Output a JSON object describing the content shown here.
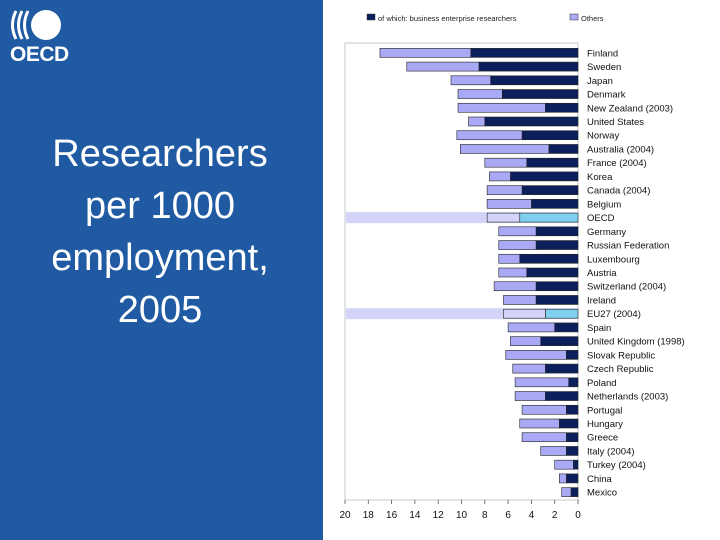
{
  "slide": {
    "logo_text": "OECD",
    "title_lines": [
      "Researchers",
      "per 1000",
      "employment,",
      "2005"
    ]
  },
  "colors": {
    "background": "#1f5aa3",
    "business_series": "#0a1f5c",
    "others_series": "#a9a9f5",
    "highlight_business": "#7fd0ee",
    "highlight_others": "#d4d4fb",
    "panel": "#ffffff"
  },
  "icons": {
    "logo": "oecd-logo-icon"
  },
  "chart_data": {
    "type": "bar",
    "orientation": "horizontal",
    "stacked": true,
    "axis_direction": "reversed",
    "title": "",
    "xlabel": "",
    "ylabel": "",
    "xlim": [
      0,
      20
    ],
    "xticks": [
      20,
      18,
      16,
      14,
      12,
      10,
      8,
      6,
      4,
      2,
      0
    ],
    "legend": [
      "of which: business enterprise researchers",
      "Others"
    ],
    "highlighted": [
      "OECD",
      "EU27 (2004)"
    ],
    "categories": [
      "Finland",
      "Sweden",
      "Japan",
      "Denmark",
      "New Zealand (2003)",
      "United States",
      "Norway",
      "Australia (2004)",
      "France (2004)",
      "Korea",
      "Canada (2004)",
      "Belgium",
      "OECD",
      "Germany",
      "Russian Federation",
      "Luxembourg",
      "Austria",
      "Switzerland (2004)",
      "Ireland",
      "EU27 (2004)",
      "Spain",
      "United Kingdom (1998)",
      "Slovak Republic",
      "Czech Republic",
      "Poland",
      "Netherlands (2003)",
      "Portugal",
      "Hungary",
      "Greece",
      "Italy (2004)",
      "Turkey (2004)",
      "China",
      "Mexico"
    ],
    "series": [
      {
        "name": "of which: business enterprise researchers",
        "values": [
          9.2,
          8.5,
          7.5,
          6.5,
          2.8,
          8.0,
          4.8,
          2.5,
          4.4,
          5.8,
          4.8,
          4.0,
          5.0,
          3.6,
          3.6,
          5.0,
          4.4,
          3.6,
          3.6,
          2.8,
          2.0,
          3.2,
          1.0,
          2.8,
          0.8,
          2.8,
          1.0,
          1.6,
          1.0,
          1.0,
          0.4,
          1.0,
          0.6
        ]
      },
      {
        "name": "Others",
        "values": [
          7.8,
          6.2,
          3.4,
          3.8,
          7.5,
          1.4,
          5.6,
          7.6,
          3.6,
          1.8,
          3.0,
          3.8,
          2.8,
          3.2,
          3.2,
          1.8,
          2.4,
          3.6,
          2.8,
          3.6,
          4.0,
          2.6,
          5.2,
          2.8,
          4.6,
          2.6,
          3.8,
          3.4,
          3.8,
          2.2,
          1.6,
          0.6,
          0.8
        ]
      }
    ]
  }
}
